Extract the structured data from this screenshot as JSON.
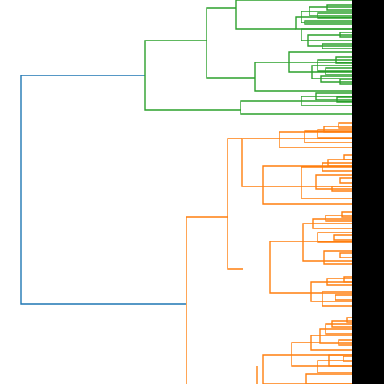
{
  "diagram": {
    "type": "dendrogram",
    "orientation": "left",
    "colors": {
      "root": "#1f77b4",
      "cluster_green": "#2ca02c",
      "cluster_orange": "#ff7f0e",
      "edge_bar": "#000000",
      "background": "#ffffff"
    },
    "clusters": [
      {
        "id": "green",
        "color": "#2ca02c"
      },
      {
        "id": "orange",
        "color": "#ff7f0e"
      }
    ]
  }
}
